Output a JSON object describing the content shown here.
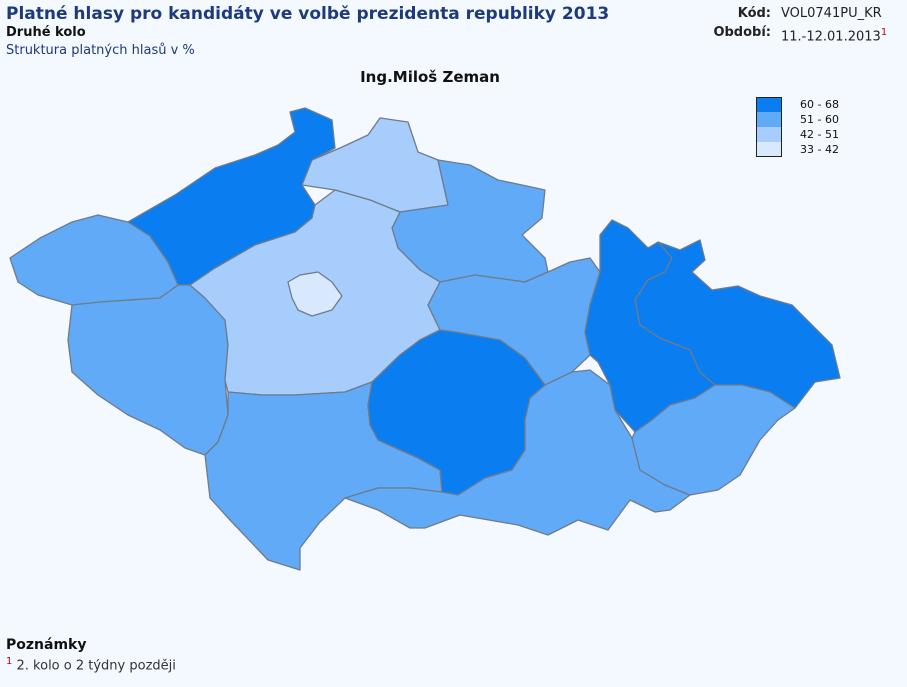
{
  "header": {
    "title": "Platné hlasy pro kandidáty ve volbě prezidenta republiky 2013",
    "subtitle": "Druhé kolo",
    "subsubtitle": "Struktura platných hlasů v %",
    "code_label": "Kód:",
    "code_value": "VOL0741PU_KR",
    "period_label": "Období:",
    "period_value": "11.-12.01.2013",
    "period_note_ref": "1"
  },
  "map": {
    "title": "Ing.Miloš Zeman",
    "legend": [
      {
        "label": "60 - 68",
        "color": "#0a7ef0"
      },
      {
        "label": "51 - 60",
        "color": "#61aaf7"
      },
      {
        "label": "42 - 51",
        "color": "#a6cdfb"
      },
      {
        "label": "33 - 42",
        "color": "#d8e9fd"
      }
    ],
    "regions": [
      {
        "name": "Karlovarský kraj",
        "range": "51 - 60"
      },
      {
        "name": "Ústecký kraj",
        "range": "60 - 68"
      },
      {
        "name": "Liberecký kraj",
        "range": "42 - 51"
      },
      {
        "name": "Královéhradecký kraj",
        "range": "51 - 60"
      },
      {
        "name": "Plzeňský kraj",
        "range": "51 - 60"
      },
      {
        "name": "Středočeský kraj",
        "range": "42 - 51"
      },
      {
        "name": "Hlavní město Praha",
        "range": "33 - 42"
      },
      {
        "name": "Pardubický kraj",
        "range": "51 - 60"
      },
      {
        "name": "Jihočeský kraj",
        "range": "51 - 60"
      },
      {
        "name": "Kraj Vysočina",
        "range": "60 - 68"
      },
      {
        "name": "Jihomoravský kraj",
        "range": "51 - 60"
      },
      {
        "name": "Olomoucký kraj",
        "range": "60 - 68"
      },
      {
        "name": "Moravskoslezský kraj",
        "range": "60 - 68"
      },
      {
        "name": "Zlínský kraj",
        "range": "51 - 60"
      }
    ]
  },
  "notes": {
    "heading": "Poznámky",
    "items": [
      {
        "ref": "1",
        "text": "2. kolo o 2 týdny později"
      }
    ]
  }
}
